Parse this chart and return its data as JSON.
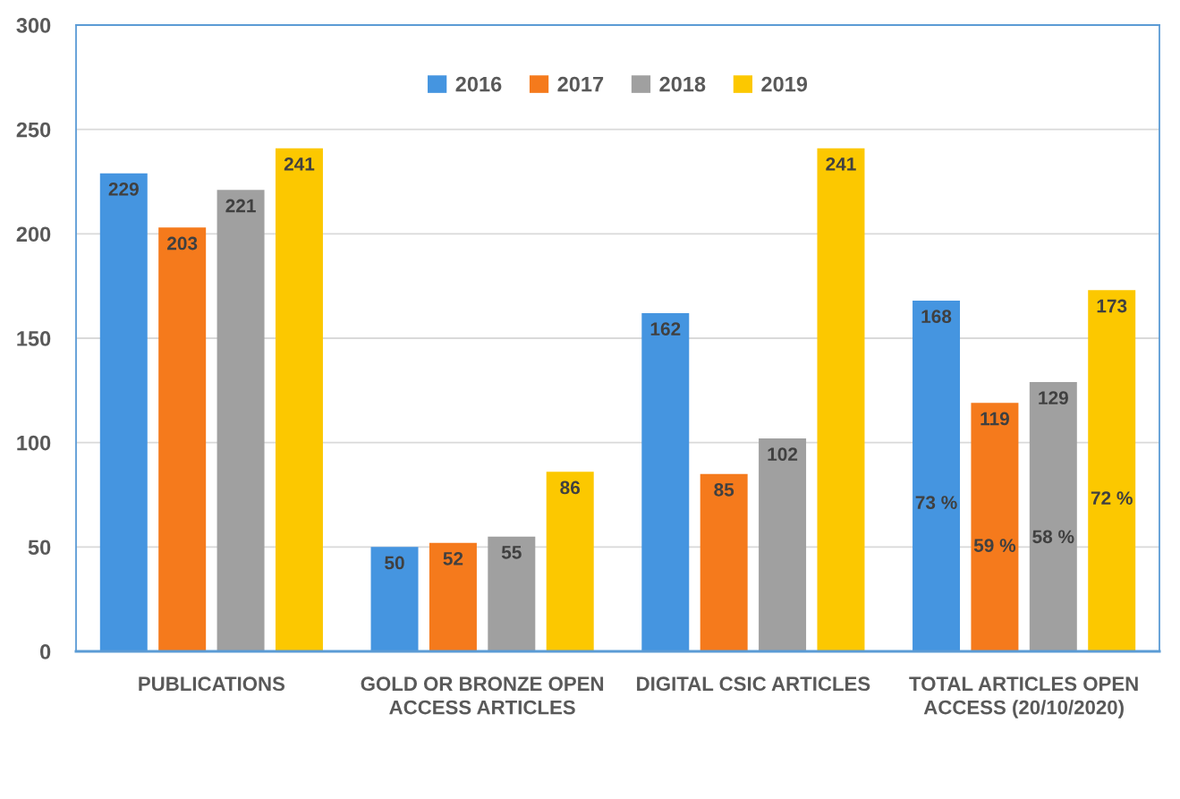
{
  "chart_data": {
    "type": "bar",
    "categories": [
      "PUBLICATIONS",
      "GOLD OR BRONZE OPEN ACCESS ARTICLES",
      "DIGITAL CSIC ARTICLES",
      "TOTAL ARTICLES OPEN ACCESS (20/10/2020)"
    ],
    "series": [
      {
        "name": "2016",
        "color": "#4595e0",
        "values": [
          229,
          50,
          162,
          168
        ]
      },
      {
        "name": "2017",
        "color": "#f57a1c",
        "values": [
          203,
          52,
          85,
          119
        ]
      },
      {
        "name": "2018",
        "color": "#a0a0a0",
        "values": [
          221,
          55,
          102,
          129
        ]
      },
      {
        "name": "2019",
        "color": "#fcc800",
        "values": [
          241,
          86,
          241,
          173
        ]
      }
    ],
    "ylim": [
      0,
      300
    ],
    "yticks": [
      0,
      50,
      100,
      150,
      200,
      250,
      300
    ],
    "grid": "y",
    "legend": "top",
    "data_labels": true,
    "annotations": [
      "73 %",
      "59 %",
      "58 %",
      "72 %"
    ]
  }
}
